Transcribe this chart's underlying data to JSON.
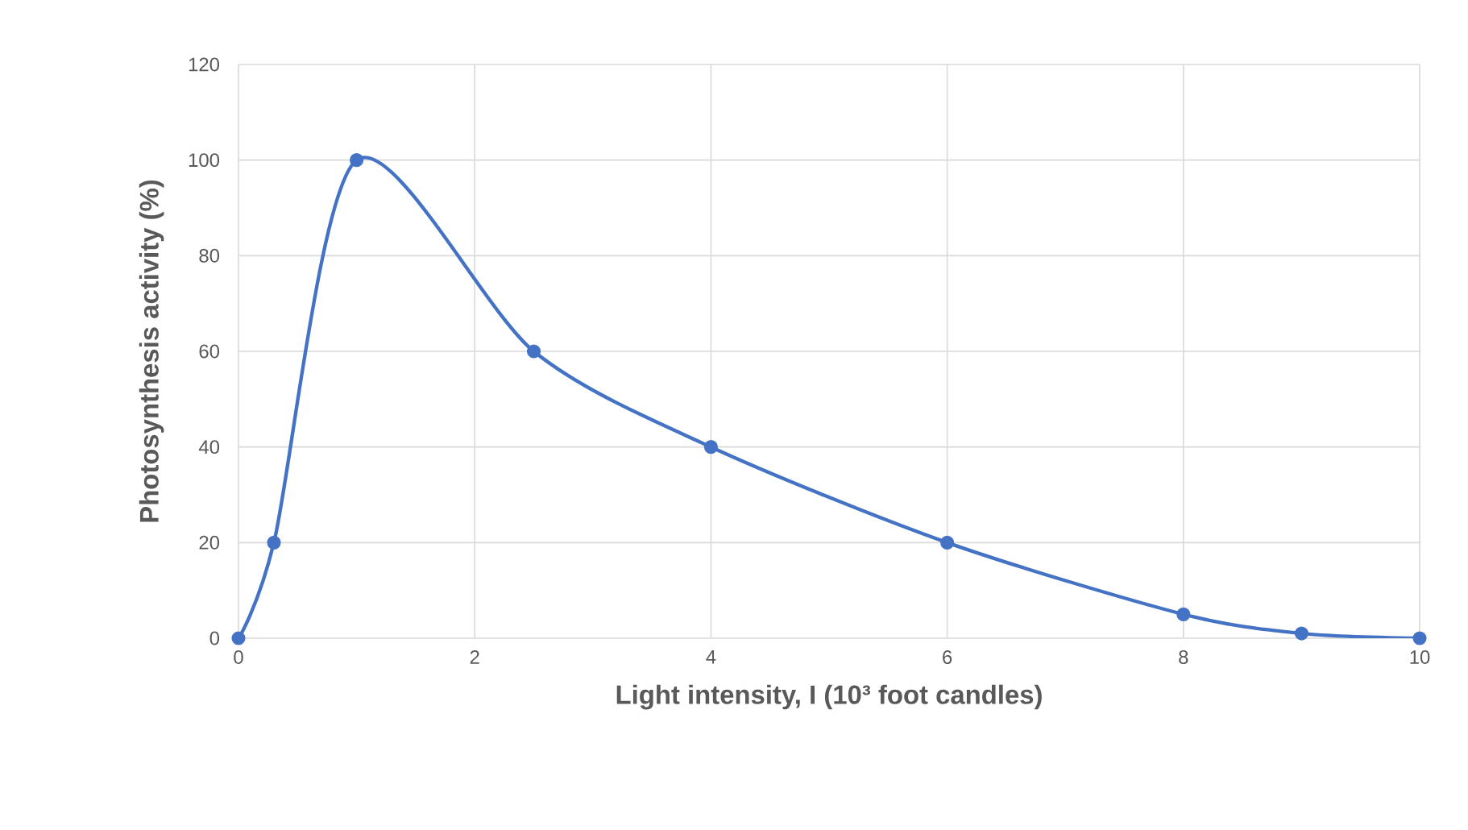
{
  "chart_data": {
    "type": "line",
    "xlabel": "Light intensity, I (10³ foot candles)",
    "ylabel": "Photosynthesis activity (%)",
    "x": [
      0,
      0.3,
      1,
      2.5,
      4,
      6,
      8,
      9,
      10
    ],
    "values": [
      0,
      20,
      100,
      60,
      40,
      20,
      5,
      1,
      0
    ],
    "color": "#4472c4",
    "xlim": [
      0,
      10
    ],
    "ylim": [
      0,
      120
    ],
    "xticks": [
      0,
      2,
      4,
      6,
      8,
      10
    ],
    "yticks": [
      0,
      20,
      40,
      60,
      80,
      100,
      120
    ],
    "grid": true,
    "marker": "circle"
  }
}
